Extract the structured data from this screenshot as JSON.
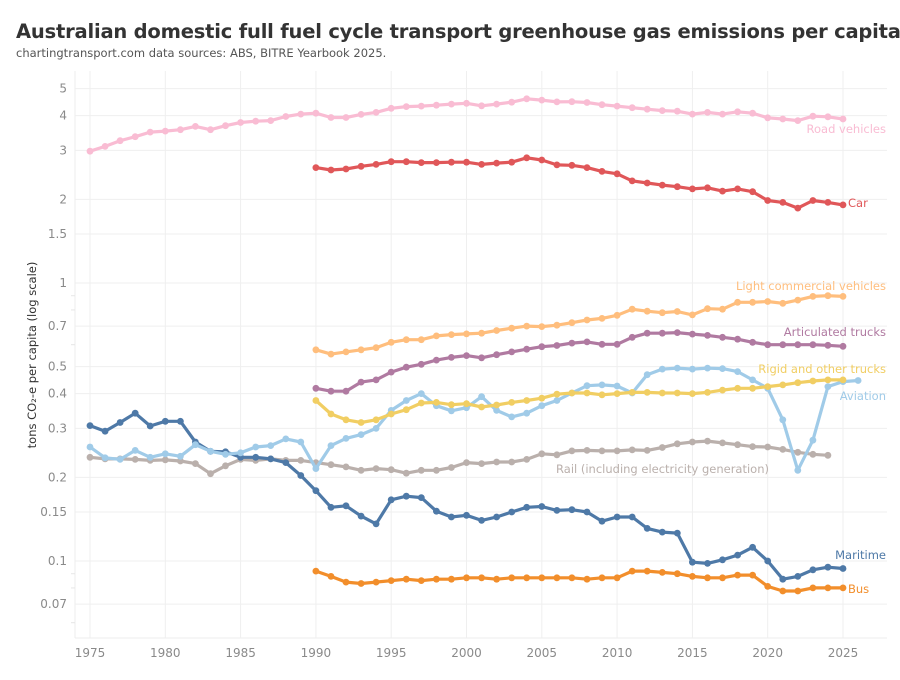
{
  "chart_data": {
    "type": "line",
    "title": "Australian domestic full fuel cycle transport greenhouse gas emissions per capita",
    "subtitle": "chartingtransport.com  data sources: ABS, BITRE Yearbook 2025.",
    "xlabel": "",
    "ylabel": "tons CO₂-e per capita (log scale)",
    "yscale": "log",
    "ylim": [
      0.053,
      5.8
    ],
    "xlim": [
      1972,
      2028
    ],
    "grid": true,
    "legend": "inline-right",
    "x_ticks": [
      1975,
      1980,
      1985,
      1990,
      1995,
      2000,
      2005,
      2010,
      2015,
      2020,
      2025
    ],
    "y_ticks": [
      5,
      4,
      3,
      2,
      1.5,
      1,
      0.7,
      0.5,
      0.4,
      0.3,
      0.2,
      0.15,
      0.1,
      0.07
    ],
    "y_tick_labels": [
      "5",
      "4",
      "3",
      "2",
      "1.5",
      "1",
      "0.7",
      "0.5",
      "0.4",
      "0.3",
      "0.2",
      "0.15",
      "0.1",
      "0.07"
    ],
    "series": [
      {
        "name": "Road vehicles",
        "color": "#f9bcd3",
        "start": 1975,
        "values": [
          2.98,
          3.1,
          3.25,
          3.36,
          3.49,
          3.52,
          3.56,
          3.66,
          3.56,
          3.68,
          3.78,
          3.82,
          3.84,
          3.97,
          4.05,
          4.08,
          3.94,
          3.94,
          4.04,
          4.11,
          4.25,
          4.31,
          4.33,
          4.36,
          4.4,
          4.43,
          4.34,
          4.4,
          4.47,
          4.6,
          4.55,
          4.48,
          4.49,
          4.46,
          4.38,
          4.33,
          4.27,
          4.22,
          4.17,
          4.15,
          4.05,
          4.11,
          4.05,
          4.13,
          4.08,
          3.93,
          3.89,
          3.84,
          3.98,
          3.96,
          3.89
        ]
      },
      {
        "name": "Car",
        "color": "#e05759",
        "start": 1990,
        "values": [
          2.6,
          2.55,
          2.57,
          2.63,
          2.67,
          2.73,
          2.73,
          2.71,
          2.71,
          2.72,
          2.72,
          2.67,
          2.7,
          2.72,
          2.82,
          2.77,
          2.66,
          2.65,
          2.6,
          2.52,
          2.47,
          2.33,
          2.29,
          2.25,
          2.22,
          2.18,
          2.2,
          2.14,
          2.18,
          2.13,
          1.98,
          1.95,
          1.86,
          1.98,
          1.95,
          1.91
        ]
      },
      {
        "name": "Light commercial vehicles",
        "color": "#ffbe7d",
        "start": 1990,
        "values": [
          0.575,
          0.555,
          0.565,
          0.575,
          0.585,
          0.612,
          0.625,
          0.625,
          0.645,
          0.652,
          0.656,
          0.66,
          0.675,
          0.688,
          0.7,
          0.697,
          0.705,
          0.72,
          0.736,
          0.746,
          0.765,
          0.805,
          0.792,
          0.782,
          0.79,
          0.768,
          0.808,
          0.805,
          0.852,
          0.852,
          0.858,
          0.845,
          0.868,
          0.895,
          0.9,
          0.895
        ]
      },
      {
        "name": "Articulated trucks",
        "color": "#b07aa1",
        "start": 1990,
        "values": [
          0.418,
          0.408,
          0.408,
          0.44,
          0.448,
          0.478,
          0.498,
          0.51,
          0.528,
          0.54,
          0.548,
          0.538,
          0.552,
          0.565,
          0.578,
          0.59,
          0.596,
          0.608,
          0.614,
          0.602,
          0.602,
          0.638,
          0.66,
          0.66,
          0.663,
          0.655,
          0.648,
          0.638,
          0.628,
          0.612,
          0.6,
          0.6,
          0.6,
          0.6,
          0.597,
          0.592
        ]
      },
      {
        "name": "Rigid and other trucks",
        "color": "#f1ce63",
        "start": 1990,
        "values": [
          0.378,
          0.338,
          0.322,
          0.315,
          0.322,
          0.338,
          0.35,
          0.37,
          0.372,
          0.365,
          0.368,
          0.358,
          0.364,
          0.372,
          0.378,
          0.385,
          0.398,
          0.402,
          0.402,
          0.396,
          0.4,
          0.404,
          0.404,
          0.402,
          0.402,
          0.4,
          0.404,
          0.412,
          0.418,
          0.418,
          0.424,
          0.43,
          0.438,
          0.444,
          0.448,
          0.448
        ]
      },
      {
        "name": "Aviation",
        "color": "#a0cbe8",
        "start": 1975,
        "values": [
          0.257,
          0.235,
          0.232,
          0.25,
          0.236,
          0.243,
          0.238,
          0.262,
          0.248,
          0.242,
          0.245,
          0.257,
          0.26,
          0.275,
          0.268,
          0.215,
          0.26,
          0.276,
          0.285,
          0.3,
          0.348,
          0.378,
          0.4,
          0.362,
          0.347,
          0.356,
          0.39,
          0.348,
          0.33,
          0.34,
          0.362,
          0.378,
          0.402,
          0.427,
          0.43,
          0.426,
          0.402,
          0.468,
          0.49,
          0.494,
          0.49,
          0.494,
          0.492,
          0.48,
          0.448,
          0.418,
          0.322,
          0.212,
          0.272,
          0.424,
          0.442,
          0.446
        ]
      },
      {
        "name": "Rail (including electricity generation)",
        "color": "#bab0ac",
        "start": 1975,
        "values": [
          0.236,
          0.233,
          0.233,
          0.232,
          0.23,
          0.231,
          0.229,
          0.224,
          0.206,
          0.22,
          0.232,
          0.23,
          0.233,
          0.23,
          0.23,
          0.226,
          0.222,
          0.218,
          0.212,
          0.215,
          0.213,
          0.207,
          0.212,
          0.212,
          0.217,
          0.226,
          0.224,
          0.227,
          0.227,
          0.232,
          0.243,
          0.241,
          0.249,
          0.25,
          0.249,
          0.249,
          0.251,
          0.25,
          0.256,
          0.264,
          0.268,
          0.27,
          0.266,
          0.262,
          0.258,
          0.257,
          0.252,
          0.246,
          0.242,
          0.24
        ]
      },
      {
        "name": "Maritime",
        "color": "#4e79a7",
        "start": 1975,
        "values": [
          0.307,
          0.293,
          0.315,
          0.34,
          0.306,
          0.318,
          0.318,
          0.268,
          0.248,
          0.247,
          0.236,
          0.236,
          0.233,
          0.226,
          0.203,
          0.179,
          0.156,
          0.158,
          0.145,
          0.136,
          0.166,
          0.171,
          0.169,
          0.151,
          0.144,
          0.146,
          0.14,
          0.144,
          0.15,
          0.156,
          0.157,
          0.152,
          0.153,
          0.15,
          0.139,
          0.144,
          0.144,
          0.131,
          0.127,
          0.126,
          0.099,
          0.098,
          0.101,
          0.105,
          0.112,
          0.1,
          0.086,
          0.088,
          0.093,
          0.095,
          0.094
        ]
      },
      {
        "name": "Bus",
        "color": "#f28e2b",
        "start": 1990,
        "values": [
          0.092,
          0.088,
          0.084,
          0.083,
          0.084,
          0.085,
          0.086,
          0.085,
          0.086,
          0.086,
          0.087,
          0.087,
          0.086,
          0.087,
          0.087,
          0.087,
          0.087,
          0.087,
          0.086,
          0.087,
          0.087,
          0.092,
          0.092,
          0.091,
          0.09,
          0.088,
          0.087,
          0.087,
          0.089,
          0.089,
          0.081,
          0.078,
          0.078,
          0.08,
          0.08,
          0.08
        ]
      }
    ]
  }
}
